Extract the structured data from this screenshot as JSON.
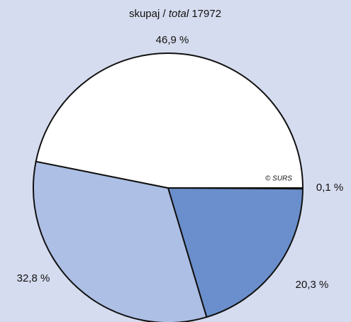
{
  "chart_data": {
    "type": "pie",
    "title_parts": [
      "skupaj /",
      "total",
      "17972"
    ],
    "credit": "© SURS",
    "values": [
      0.1,
      20.3,
      32.8,
      46.9
    ],
    "value_labels": [
      "0,1 %",
      "20,3 %",
      "32,8 %",
      "46,9 %"
    ],
    "colors": [
      "#1f3a7a",
      "#6a8fcc",
      "#adbfe4",
      "#ffffff"
    ],
    "start_angle": 0,
    "direction": "clockwise"
  }
}
